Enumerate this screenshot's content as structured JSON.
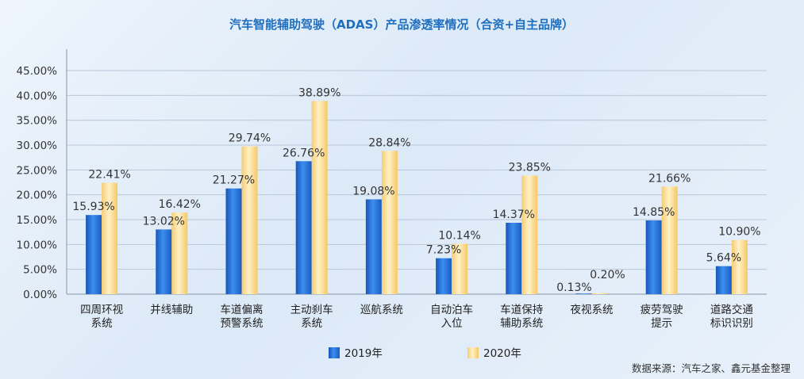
{
  "chart_data": {
    "type": "bar",
    "title": "汽车智能辅助驾驶（ADAS）产品渗透率情况（合资+自主品牌）",
    "categories": [
      [
        "四周环视",
        "系统"
      ],
      [
        "并线辅助"
      ],
      [
        "车道偏离",
        "预警系统"
      ],
      [
        "主动刹车",
        "系统"
      ],
      [
        "巡航系统"
      ],
      [
        "自动泊车",
        "入位"
      ],
      [
        "车道保持",
        "辅助系统"
      ],
      [
        "夜视系统"
      ],
      [
        "疲劳驾驶",
        "提示"
      ],
      [
        "道路交通",
        "标识识别"
      ]
    ],
    "series": [
      {
        "name": "2019年",
        "values": [
          15.93,
          13.02,
          21.27,
          26.76,
          19.08,
          7.23,
          14.37,
          0.13,
          14.85,
          5.64
        ],
        "labels": [
          "15.93%",
          "13.02%",
          "21.27%",
          "26.76%",
          "19.08%",
          "7.23%",
          "14.37%",
          "0.13%",
          "14.85%",
          "5.64%"
        ],
        "color": "#2f78d8"
      },
      {
        "name": "2020年",
        "values": [
          22.41,
          16.42,
          29.74,
          38.89,
          28.84,
          10.14,
          23.85,
          0.2,
          21.66,
          10.9
        ],
        "labels": [
          "22.41%",
          "16.42%",
          "29.74%",
          "38.89%",
          "28.84%",
          "10.14%",
          "23.85%",
          "0.20%",
          "21.66%",
          "10.90%"
        ],
        "color": "#ffd98a"
      }
    ],
    "yticks": [
      "0.00%",
      "5.00%",
      "10.00%",
      "15.00%",
      "20.00%",
      "25.00%",
      "30.00%",
      "35.00%",
      "40.00%",
      "45.00%"
    ],
    "ylim": [
      0,
      45
    ],
    "grid": true,
    "legend_position": "bottom-center",
    "source": "数据来源：汽车之家、鑫元基金整理"
  }
}
